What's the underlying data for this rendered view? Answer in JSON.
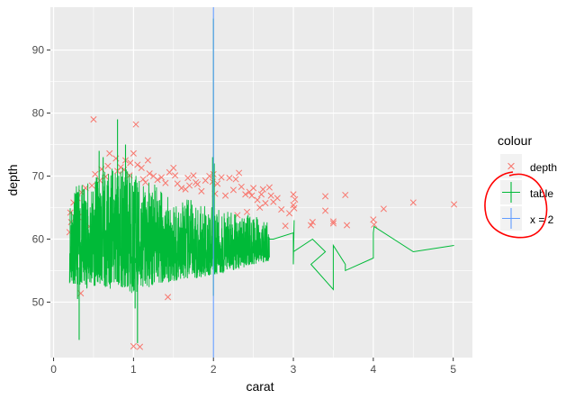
{
  "chart_data": {
    "type": "scatter",
    "xlabel": "carat",
    "ylabel": "depth",
    "xlim": [
      -0.04,
      5.24
    ],
    "ylim": [
      41.2,
      96.8
    ],
    "x_ticks": [
      0,
      1,
      2,
      3,
      4,
      5
    ],
    "y_ticks": [
      50,
      60,
      70,
      80,
      90
    ],
    "grid": true,
    "background": "#ebebeb",
    "legend": {
      "title": "colour",
      "placement": "right",
      "entries": [
        {
          "label": "depth",
          "color": "#f8766d",
          "glyph": "cross"
        },
        {
          "label": "table",
          "color": "#00ba38",
          "glyph": "line"
        },
        {
          "label": "x = 2",
          "color": "#619cff",
          "glyph": "line"
        }
      ],
      "annotation": {
        "shape": "hand-drawn-circle",
        "color": "#ff0000"
      }
    },
    "series": [
      {
        "name": "depth",
        "kind": "scatter",
        "color": "#f8766d",
        "marker": "x",
        "points": [
          [
            0.5,
            79
          ],
          [
            1.03,
            78.2
          ],
          [
            0.7,
            73.6
          ],
          [
            1.0,
            73.6
          ],
          [
            0.96,
            72.1
          ],
          [
            0.84,
            71.4
          ],
          [
            1.1,
            71.3
          ],
          [
            1.5,
            71.3
          ],
          [
            1.52,
            70.1
          ],
          [
            1.68,
            69.7
          ],
          [
            1.75,
            70.1
          ],
          [
            2.0,
            70.3
          ],
          [
            2.2,
            69.7
          ],
          [
            2.32,
            70.5
          ],
          [
            2.28,
            69.5
          ],
          [
            2.5,
            68.1
          ],
          [
            2.7,
            68.2
          ],
          [
            2.25,
            67.8
          ],
          [
            2.45,
            67.5
          ],
          [
            2.6,
            67.1
          ],
          [
            2.8,
            66.5
          ],
          [
            3.0,
            67.1
          ],
          [
            3.0,
            65.4
          ],
          [
            3.01,
            64.9
          ],
          [
            3.4,
            66.8
          ],
          [
            3.5,
            62.8
          ],
          [
            3.5,
            62.5
          ],
          [
            3.65,
            67.0
          ],
          [
            3.22,
            62.2
          ],
          [
            3.24,
            62.7
          ],
          [
            3.4,
            64.5
          ],
          [
            3.67,
            62.2
          ],
          [
            4.0,
            63.1
          ],
          [
            4.01,
            62.3
          ],
          [
            4.13,
            64.8
          ],
          [
            4.5,
            65.8
          ],
          [
            5.01,
            65.5
          ],
          [
            2.9,
            62.1
          ],
          [
            1.43,
            50.8
          ],
          [
            0.34,
            51.4
          ],
          [
            1.0,
            43.0
          ],
          [
            1.08,
            42.9
          ],
          [
            0.48,
            68.5
          ],
          [
            0.52,
            70.3
          ],
          [
            0.6,
            71.1
          ],
          [
            0.78,
            72.8
          ],
          [
            0.9,
            72.5
          ],
          [
            1.2,
            70.4
          ],
          [
            1.3,
            69.4
          ],
          [
            1.4,
            68.9
          ],
          [
            1.6,
            68.1
          ],
          [
            1.8,
            68.7
          ],
          [
            1.9,
            69.3
          ],
          [
            2.05,
            68.8
          ],
          [
            2.1,
            69.8
          ],
          [
            2.4,
            67.1
          ],
          [
            2.55,
            66.2
          ],
          [
            2.65,
            65.7
          ],
          [
            2.75,
            65.9
          ],
          [
            2.02,
            67.2
          ],
          [
            1.7,
            68.5
          ],
          [
            1.12,
            69.5
          ],
          [
            0.25,
            65.8
          ],
          [
            0.3,
            66.5
          ],
          [
            0.22,
            62.7
          ],
          [
            0.2,
            61.1
          ],
          [
            0.21,
            64.2
          ],
          [
            0.35,
            67.4
          ],
          [
            0.4,
            68.1
          ],
          [
            0.65,
            69.9
          ],
          [
            0.8,
            70.8
          ],
          [
            0.95,
            70.1
          ],
          [
            1.05,
            71.8
          ],
          [
            1.15,
            69.0
          ],
          [
            1.25,
            70.0
          ],
          [
            1.35,
            69.8
          ],
          [
            1.45,
            70.6
          ],
          [
            1.55,
            68.8
          ],
          [
            1.65,
            67.9
          ],
          [
            1.85,
            67.6
          ],
          [
            1.95,
            70.0
          ],
          [
            2.15,
            66.9
          ],
          [
            2.35,
            68.3
          ],
          [
            2.85,
            64.7
          ],
          [
            2.95,
            64.1
          ],
          [
            3.02,
            66.3
          ],
          [
            0.58,
            69.3
          ],
          [
            0.68,
            71.6
          ],
          [
            0.88,
            71.0
          ],
          [
            1.18,
            72.5
          ],
          [
            1.78,
            69.0
          ],
          [
            2.48,
            66.9
          ],
          [
            2.62,
            67.9
          ],
          [
            2.72,
            66.9
          ],
          [
            2.58,
            65.0
          ],
          [
            2.42,
            64.3
          ],
          [
            2.3,
            63.8
          ],
          [
            1.99,
            69.1
          ],
          [
            0.31,
            63.5
          ],
          [
            0.45,
            62.0
          ]
        ]
      },
      {
        "name": "table",
        "kind": "line",
        "color": "#00ba38",
        "band": [
          [
            0.2,
            53.0,
            67.6
          ],
          [
            0.3,
            52.8,
            68.5
          ],
          [
            0.4,
            52.1,
            68.9
          ],
          [
            0.5,
            52.5,
            69.5
          ],
          [
            0.6,
            52.9,
            70.5
          ],
          [
            0.7,
            52.0,
            71.5
          ],
          [
            0.8,
            52.8,
            72.0
          ],
          [
            0.9,
            52.0,
            71.5
          ],
          [
            1.0,
            51.2,
            71.2
          ],
          [
            1.1,
            52.1,
            70.0
          ],
          [
            1.2,
            52.4,
            69.3
          ],
          [
            1.3,
            52.8,
            68.6
          ],
          [
            1.4,
            53.1,
            67.4
          ],
          [
            1.5,
            53.2,
            67.5
          ],
          [
            1.6,
            53.6,
            66.6
          ],
          [
            1.7,
            53.5,
            66.4
          ],
          [
            1.8,
            53.8,
            65.7
          ],
          [
            1.9,
            53.9,
            65.3
          ],
          [
            2.0,
            54.4,
            65.0
          ],
          [
            2.1,
            54.5,
            64.5
          ],
          [
            2.2,
            54.9,
            64.5
          ],
          [
            2.3,
            55.1,
            63.9
          ],
          [
            2.4,
            55.6,
            64.2
          ],
          [
            2.5,
            56.0,
            63.6
          ],
          [
            2.6,
            56.2,
            63.3
          ],
          [
            2.7,
            56.5,
            62.8
          ]
        ],
        "spikes": [
          [
            0.3,
            54.0,
            50.5
          ],
          [
            0.32,
            55.5,
            44.0
          ],
          [
            0.8,
            60.0,
            79.0
          ],
          [
            1.02,
            57.0,
            49.0
          ],
          [
            1.05,
            55.0,
            43.5
          ],
          [
            0.62,
            60.0,
            73.0
          ],
          [
            2.0,
            58.0,
            95.0
          ],
          [
            2.0,
            59.0,
            51.0
          ],
          [
            1.99,
            61.0,
            73.0
          ],
          [
            2.01,
            56.0,
            72.0
          ],
          [
            0.57,
            60.5,
            74.0
          ],
          [
            0.9,
            59.0,
            75.0
          ]
        ],
        "points": [
          [
            2.75,
            60.0
          ],
          [
            3.0,
            61.0
          ],
          [
            3.0,
            56.0
          ],
          [
            3.01,
            63.0
          ],
          [
            3.0,
            58.0
          ],
          [
            3.24,
            60.0
          ],
          [
            3.4,
            58.0
          ],
          [
            3.22,
            56.0
          ],
          [
            3.5,
            52.0
          ],
          [
            3.5,
            59.0
          ],
          [
            3.65,
            56.0
          ],
          [
            3.65,
            55.0
          ],
          [
            4.0,
            57.0
          ],
          [
            4.0,
            61.0
          ],
          [
            4.01,
            62.0
          ],
          [
            4.5,
            58.0
          ],
          [
            5.01,
            59.0
          ]
        ]
      },
      {
        "name": "x = 2",
        "kind": "vline",
        "color": "#619cff",
        "x": 2
      }
    ]
  }
}
